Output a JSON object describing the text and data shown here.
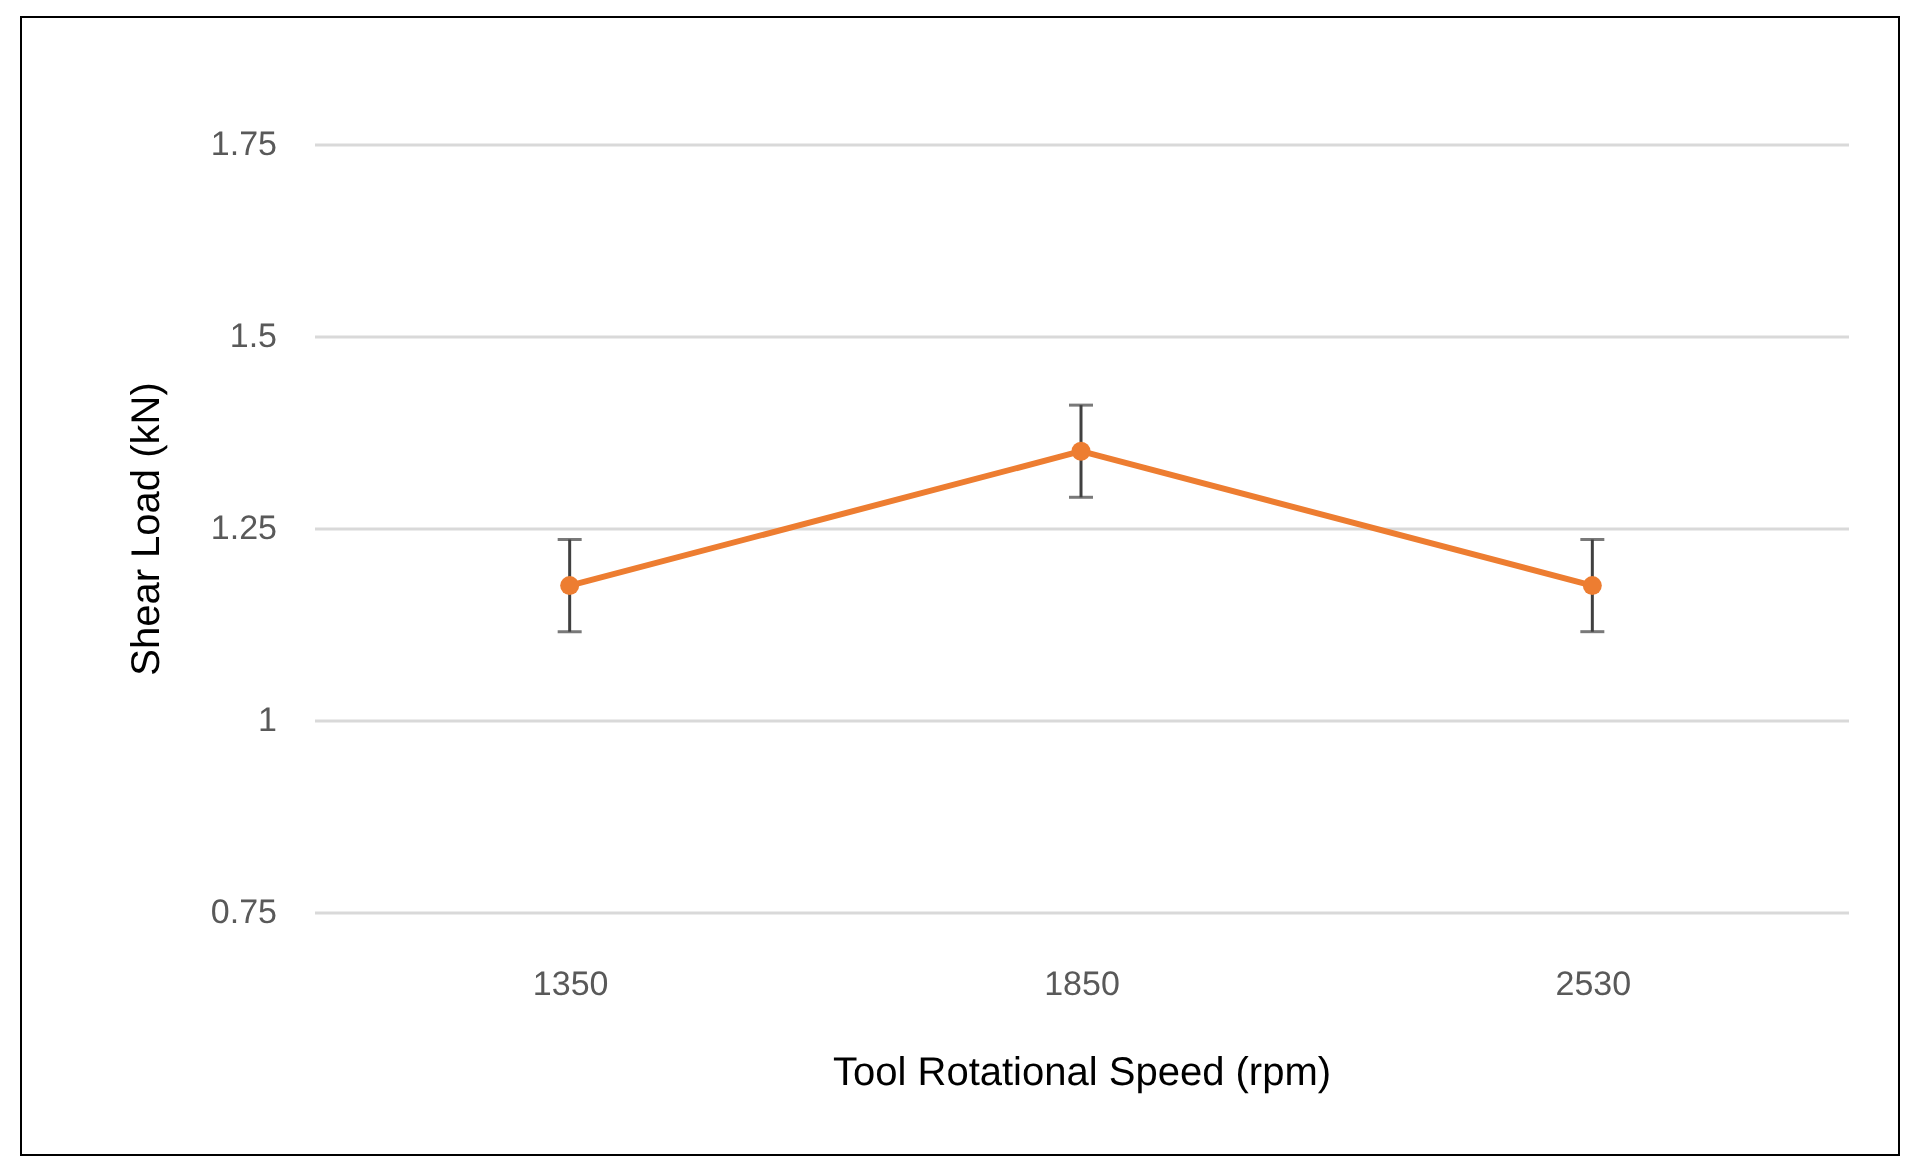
{
  "chart_data": {
    "type": "line",
    "xlabel": "Tool Rotational Speed (rpm)",
    "ylabel": "Shear Load (kN)",
    "categories": [
      "1350",
      "1850",
      "2530"
    ],
    "series": [
      {
        "color": "#ed7d31",
        "values": [
          1.175,
          1.35,
          1.175
        ],
        "errors": [
          0.06,
          0.06,
          0.06
        ]
      }
    ],
    "ylim": [
      0.75,
      1.75
    ],
    "yticks": [
      0.75,
      1,
      1.25,
      1.5,
      1.75
    ],
    "grid": "y",
    "marker": "circle",
    "legend": false
  }
}
